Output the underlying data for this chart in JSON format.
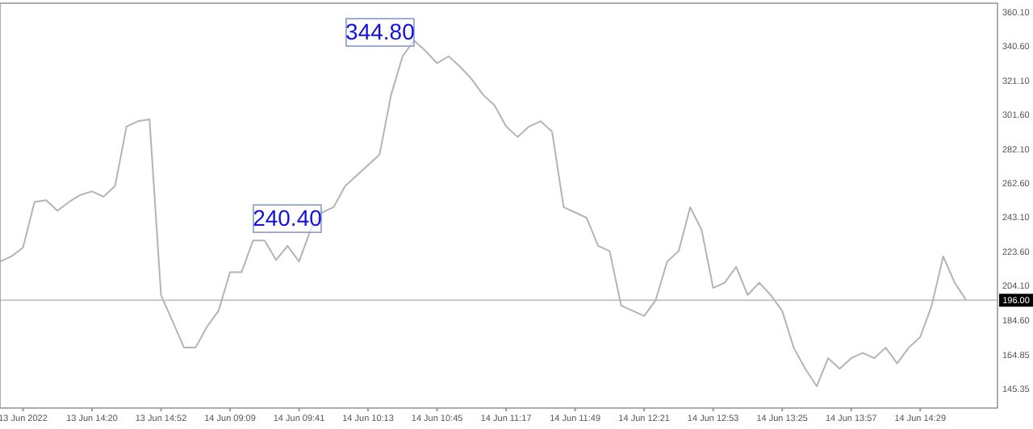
{
  "chart_data": {
    "type": "line",
    "categories": [
      null,
      null,
      "13 Jun 2022",
      null,
      null,
      null,
      null,
      null,
      "13 Jun 14:20",
      null,
      null,
      null,
      null,
      null,
      "13 Jun 14:52",
      null,
      null,
      null,
      null,
      null,
      "14 Jun 09:09",
      null,
      null,
      null,
      null,
      null,
      "14 Jun 09:41",
      null,
      null,
      null,
      null,
      null,
      "14 Jun 10:13",
      null,
      null,
      null,
      null,
      null,
      "14 Jun 10:45",
      null,
      null,
      null,
      null,
      null,
      "14 Jun 11:17",
      null,
      null,
      null,
      null,
      null,
      "14 Jun 11:49",
      null,
      null,
      null,
      null,
      null,
      "14 Jun 12:21",
      null,
      null,
      null,
      null,
      null,
      "14 Jun 12:53",
      null,
      null,
      null,
      null,
      null,
      "14 Jun 13:25",
      null,
      null,
      null,
      null,
      null,
      "14 Jun 13:57",
      null,
      null,
      null,
      null,
      null,
      "14 Jun 14:29",
      null,
      null,
      null,
      null,
      null,
      null,
      null
    ],
    "series": [
      {
        "color": "#b4b4b4",
        "values": [
          218,
          221,
          226,
          252,
          253,
          247,
          252,
          256,
          258,
          255,
          261,
          295,
          298,
          299,
          199,
          184,
          169,
          169,
          181,
          190,
          212,
          212,
          230,
          230,
          219,
          227,
          218,
          236,
          246,
          249,
          261,
          267,
          273,
          279,
          313,
          335,
          344,
          338,
          331,
          335,
          329,
          322,
          313,
          307,
          295,
          289,
          295,
          298,
          292,
          249,
          246,
          243,
          227,
          224,
          193,
          190,
          187,
          196,
          218,
          224,
          249,
          236,
          203,
          206,
          215,
          199,
          206,
          199,
          190,
          169,
          157,
          147,
          163,
          157,
          163,
          166,
          163,
          169,
          160,
          169,
          175,
          193,
          221,
          206,
          196,
          null,
          null,
          null
        ]
      }
    ],
    "ylim": [
      134.6,
      365.2
    ],
    "yticks": [
      {
        "value": 360.1,
        "label": "360.10"
      },
      {
        "value": 340.6,
        "label": "340.60"
      },
      {
        "value": 321.1,
        "label": "321.10"
      },
      {
        "value": 301.6,
        "label": "301.60"
      },
      {
        "value": 282.1,
        "label": "282.10"
      },
      {
        "value": 262.6,
        "label": "262.60"
      },
      {
        "value": 243.1,
        "label": "243.10"
      },
      {
        "value": 223.6,
        "label": "223.60"
      },
      {
        "value": 204.1,
        "label": "204.10"
      },
      {
        "value": 184.6,
        "label": "184.60"
      },
      {
        "value": 164.85,
        "label": "164.85"
      },
      {
        "value": 145.35,
        "label": "145.35"
      }
    ],
    "ref_lines": [
      {
        "axis": "y",
        "value": 196,
        "label": "196.00",
        "color": "#c8c8c8"
      }
    ],
    "annotations": [
      "344.80",
      "240.40"
    ],
    "grid": false
  }
}
